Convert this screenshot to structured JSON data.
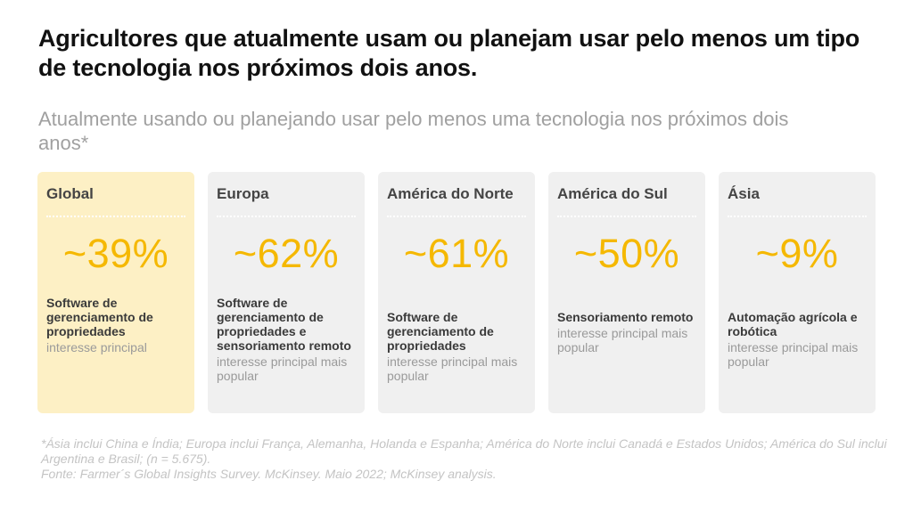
{
  "title": "Agricultores que atualmente usam ou planejam usar pelo menos um tipo de tecnologia nos próximos dois anos.",
  "subtitle": "Atualmente usando ou planejando usar pelo menos uma tecnologia nos próximos dois anos*",
  "colors": {
    "accent": "#f5b800",
    "highlight_bg": "#fdf0c5",
    "card_bg": "#f0f0f0"
  },
  "chart_data": {
    "type": "table",
    "title": "Atualmente usando ou planejando usar pelo menos uma tecnologia nos próximos dois anos*",
    "unit": "%",
    "categories": [
      "Global",
      "Europa",
      "América do Norte",
      "América do Sul",
      "Ásia"
    ],
    "values": [
      39,
      62,
      61,
      50,
      9
    ],
    "cards": [
      {
        "region": "Global",
        "value": 39,
        "value_label": "~39%",
        "interest": "Software de gerenciamento de propriedades",
        "note": "interesse principal",
        "highlighted": true
      },
      {
        "region": "Europa",
        "value": 62,
        "value_label": "~62%",
        "interest": "Software de gerenciamento de propriedades e sensoriamento remoto",
        "note": "interesse principal mais popular",
        "highlighted": false
      },
      {
        "region": "América do Norte",
        "value": 61,
        "value_label": "~61%",
        "interest": "Software de gerenciamento de propriedades",
        "note": "interesse principal mais popular",
        "highlighted": false
      },
      {
        "region": "América do Sul",
        "value": 50,
        "value_label": "~50%",
        "interest": "Sensoriamento remoto",
        "note": "interesse principal mais popular",
        "highlighted": false
      },
      {
        "region": "Ásia",
        "value": 9,
        "value_label": "~9%",
        "interest": "Automação agrícola e robótica",
        "note": "interesse principal mais popular",
        "highlighted": false
      }
    ]
  },
  "footnote": {
    "line1": "*Ásia inclui China e Índia; Europa inclui França, Alemanha, Holanda e Espanha; América do Norte inclui Canadá e Estados Unidos; América do Sul inclui Argentina e Brasil; (n = 5.675).",
    "line2": "Fonte: Farmer´s Global Insights Survey. McKinsey. Maio 2022; McKinsey analysis."
  }
}
